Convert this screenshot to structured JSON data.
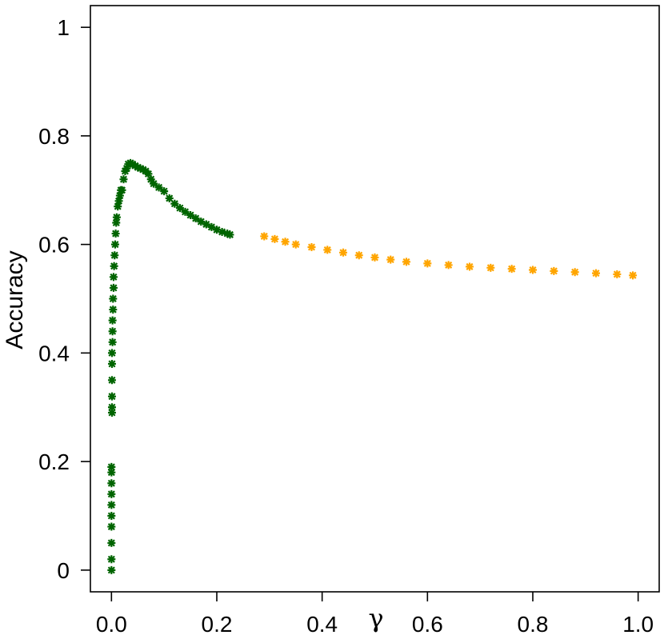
{
  "chart_data": {
    "type": "scatter",
    "xlabel": "γ",
    "ylabel": "Accuracy",
    "xlim": [
      -0.04,
      1.04
    ],
    "ylim": [
      -0.04,
      1.04
    ],
    "x_ticks": [
      {
        "value": 0.0,
        "label": "0.0"
      },
      {
        "value": 0.2,
        "label": "0.2"
      },
      {
        "value": 0.4,
        "label": "0.4"
      },
      {
        "value": 0.6,
        "label": "0.6"
      },
      {
        "value": 0.8,
        "label": "0.8"
      },
      {
        "value": 1.0,
        "label": "1.0"
      }
    ],
    "y_ticks": [
      {
        "value": 0.0,
        "label": "0"
      },
      {
        "value": 0.2,
        "label": "0.2"
      },
      {
        "value": 0.4,
        "label": "0.4"
      },
      {
        "value": 0.6,
        "label": "0.6"
      },
      {
        "value": 0.8,
        "label": "0.8"
      },
      {
        "value": 1.0,
        "label": "1"
      }
    ],
    "marker": "asterisk",
    "series": [
      {
        "color": "#006400",
        "x": [
          0.0,
          0.0,
          0.0,
          0.0,
          0.0,
          0.0,
          0.0,
          0.0,
          0.0,
          0.0,
          0.001,
          0.001,
          0.001,
          0.001,
          0.001,
          0.001,
          0.002,
          0.002,
          0.002,
          0.003,
          0.003,
          0.004,
          0.004,
          0.005,
          0.006,
          0.007,
          0.008,
          0.009,
          0.01,
          0.012,
          0.014,
          0.016,
          0.018,
          0.02,
          0.023,
          0.026,
          0.029,
          0.032,
          0.036,
          0.04,
          0.045,
          0.05,
          0.055,
          0.06,
          0.065,
          0.07,
          0.075,
          0.08,
          0.09,
          0.1,
          0.11,
          0.12,
          0.13,
          0.14,
          0.15,
          0.16,
          0.17,
          0.18,
          0.19,
          0.2,
          0.21,
          0.22,
          0.225
        ],
        "y": [
          0.0,
          0.02,
          0.05,
          0.08,
          0.1,
          0.12,
          0.14,
          0.16,
          0.18,
          0.19,
          0.29,
          0.3,
          0.32,
          0.35,
          0.38,
          0.4,
          0.42,
          0.44,
          0.46,
          0.48,
          0.5,
          0.52,
          0.54,
          0.56,
          0.58,
          0.6,
          0.62,
          0.64,
          0.65,
          0.67,
          0.68,
          0.69,
          0.7,
          0.7,
          0.72,
          0.735,
          0.74,
          0.748,
          0.75,
          0.748,
          0.745,
          0.742,
          0.74,
          0.738,
          0.735,
          0.73,
          0.72,
          0.712,
          0.705,
          0.698,
          0.685,
          0.675,
          0.667,
          0.66,
          0.654,
          0.648,
          0.642,
          0.637,
          0.632,
          0.627,
          0.623,
          0.62,
          0.618
        ]
      },
      {
        "color": "#FFA500",
        "x": [
          0.29,
          0.31,
          0.33,
          0.35,
          0.38,
          0.41,
          0.44,
          0.47,
          0.5,
          0.53,
          0.56,
          0.6,
          0.64,
          0.68,
          0.72,
          0.76,
          0.8,
          0.84,
          0.88,
          0.92,
          0.96,
          0.99
        ],
        "y": [
          0.615,
          0.61,
          0.605,
          0.6,
          0.595,
          0.59,
          0.585,
          0.58,
          0.576,
          0.572,
          0.568,
          0.565,
          0.562,
          0.559,
          0.557,
          0.555,
          0.553,
          0.551,
          0.549,
          0.547,
          0.545,
          0.543
        ]
      }
    ]
  }
}
